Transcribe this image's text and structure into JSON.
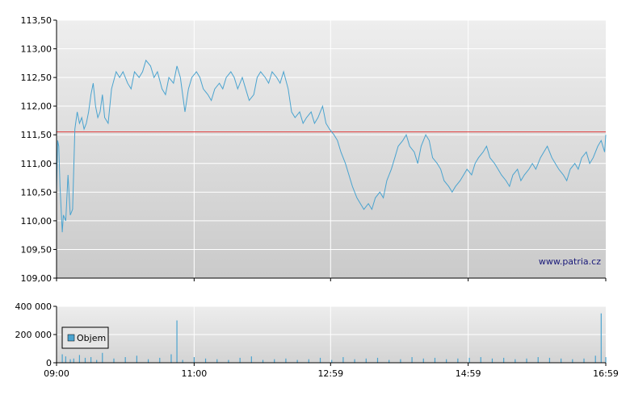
{
  "watermark": "www.patria.cz",
  "chart_data": [
    {
      "type": "line",
      "ylim": [
        109.0,
        113.5
      ],
      "y_ticks": [
        "113,50",
        "113,00",
        "112,50",
        "112,00",
        "111,50",
        "111,00",
        "110,50",
        "110,00",
        "109,50",
        "109,00"
      ],
      "y_tick_values": [
        113.5,
        113.0,
        112.5,
        112.0,
        111.5,
        111.0,
        110.5,
        110.0,
        109.5,
        109.0
      ],
      "reference_line": {
        "value": 111.55,
        "color": "#e03a3a"
      },
      "line_color": "#4aa3cf",
      "x_ticks": [
        "09:00",
        "11:00",
        "12:59",
        "14:59",
        "16:59"
      ],
      "x_tick_minutes": [
        0,
        120,
        239,
        359,
        479
      ],
      "x_range_minutes": [
        0,
        479
      ],
      "grid": true,
      "series": [
        {
          "x": [
            0,
            1,
            2,
            3,
            4,
            5,
            6,
            8,
            10,
            12,
            14,
            16,
            18,
            20,
            22,
            24,
            26,
            28,
            30,
            32,
            34,
            36,
            38,
            40,
            42,
            45,
            48,
            52,
            55,
            58,
            62,
            65,
            68,
            72,
            75,
            78,
            82,
            85,
            88,
            92,
            95,
            98,
            102,
            105,
            108,
            112,
            115,
            118,
            122,
            125,
            128,
            132,
            135,
            138,
            142,
            145,
            148,
            152,
            155,
            158,
            162,
            165,
            168,
            172,
            175,
            178,
            182,
            185,
            188,
            192,
            195,
            198,
            202,
            205,
            208,
            212,
            215,
            218,
            222,
            225,
            228,
            232,
            235,
            238,
            242,
            245,
            248,
            252,
            255,
            258,
            262,
            265,
            268,
            272,
            275,
            278,
            282,
            285,
            288,
            292,
            295,
            298,
            302,
            305,
            308,
            312,
            315,
            318,
            322,
            325,
            328,
            332,
            335,
            338,
            342,
            345,
            348,
            352,
            355,
            358,
            362,
            365,
            368,
            372,
            375,
            378,
            382,
            385,
            388,
            392,
            395,
            398,
            402,
            405,
            408,
            412,
            415,
            418,
            422,
            425,
            428,
            432,
            435,
            438,
            442,
            445,
            448,
            452,
            455,
            458,
            462,
            465,
            468,
            472,
            475,
            478,
            479
          ],
          "values": [
            110.5,
            111.4,
            111.3,
            110.6,
            110.2,
            109.8,
            110.1,
            110.0,
            110.8,
            110.1,
            110.2,
            111.6,
            111.9,
            111.7,
            111.8,
            111.6,
            111.7,
            111.9,
            112.2,
            112.4,
            112.0,
            111.8,
            111.9,
            112.2,
            111.8,
            111.7,
            112.3,
            112.6,
            112.5,
            112.6,
            112.4,
            112.3,
            112.6,
            112.5,
            112.6,
            112.8,
            112.7,
            112.5,
            112.6,
            112.3,
            112.2,
            112.5,
            112.4,
            112.7,
            112.5,
            111.9,
            112.3,
            112.5,
            112.6,
            112.5,
            112.3,
            112.2,
            112.1,
            112.3,
            112.4,
            112.3,
            112.5,
            112.6,
            112.5,
            112.3,
            112.5,
            112.3,
            112.1,
            112.2,
            112.5,
            112.6,
            112.5,
            112.4,
            112.6,
            112.5,
            112.4,
            112.6,
            112.3,
            111.9,
            111.8,
            111.9,
            111.7,
            111.8,
            111.9,
            111.7,
            111.8,
            112.0,
            111.7,
            111.6,
            111.5,
            111.4,
            111.2,
            111.0,
            110.8,
            110.6,
            110.4,
            110.3,
            110.2,
            110.3,
            110.2,
            110.4,
            110.5,
            110.4,
            110.7,
            110.9,
            111.1,
            111.3,
            111.4,
            111.5,
            111.3,
            111.2,
            111.0,
            111.3,
            111.5,
            111.4,
            111.1,
            111.0,
            110.9,
            110.7,
            110.6,
            110.5,
            110.6,
            110.7,
            110.8,
            110.9,
            110.8,
            111.0,
            111.1,
            111.2,
            111.3,
            111.1,
            111.0,
            110.9,
            110.8,
            110.7,
            110.6,
            110.8,
            110.9,
            110.7,
            110.8,
            110.9,
            111.0,
            110.9,
            111.1,
            111.2,
            111.3,
            111.1,
            111.0,
            110.9,
            110.8,
            110.7,
            110.9,
            111.0,
            110.9,
            111.1,
            111.2,
            111.0,
            111.1,
            111.3,
            111.4,
            111.2,
            111.5
          ]
        }
      ]
    },
    {
      "type": "bar",
      "ylim": [
        0,
        400000
      ],
      "y_ticks": [
        "400 000",
        "200 000",
        "0"
      ],
      "y_tick_values": [
        400000,
        200000,
        0
      ],
      "x_ticks": [
        "09:00",
        "11:00",
        "12:59",
        "14:59",
        "16:59"
      ],
      "x_tick_minutes": [
        0,
        120,
        239,
        359,
        479
      ],
      "bar_color": "#4aa3cf",
      "legend": {
        "label": "Objem",
        "position": "top-left"
      },
      "series": [
        {
          "name": "Objem",
          "x": [
            5,
            8,
            12,
            15,
            20,
            25,
            30,
            35,
            40,
            50,
            60,
            70,
            80,
            90,
            100,
            105,
            110,
            120,
            130,
            140,
            150,
            160,
            170,
            180,
            190,
            200,
            210,
            220,
            230,
            240,
            250,
            260,
            270,
            280,
            290,
            300,
            310,
            320,
            330,
            340,
            350,
            360,
            370,
            380,
            390,
            400,
            410,
            420,
            430,
            440,
            450,
            460,
            470,
            475,
            479
          ],
          "values": [
            60000,
            45000,
            25000,
            30000,
            55000,
            35000,
            40000,
            20000,
            70000,
            30000,
            40000,
            50000,
            25000,
            35000,
            60000,
            300000,
            20000,
            40000,
            30000,
            25000,
            20000,
            35000,
            45000,
            20000,
            25000,
            30000,
            20000,
            25000,
            35000,
            20000,
            40000,
            25000,
            30000,
            35000,
            20000,
            25000,
            40000,
            30000,
            35000,
            25000,
            30000,
            35000,
            40000,
            30000,
            35000,
            25000,
            30000,
            40000,
            35000,
            30000,
            25000,
            30000,
            50000,
            350000,
            40000
          ]
        }
      ]
    }
  ]
}
